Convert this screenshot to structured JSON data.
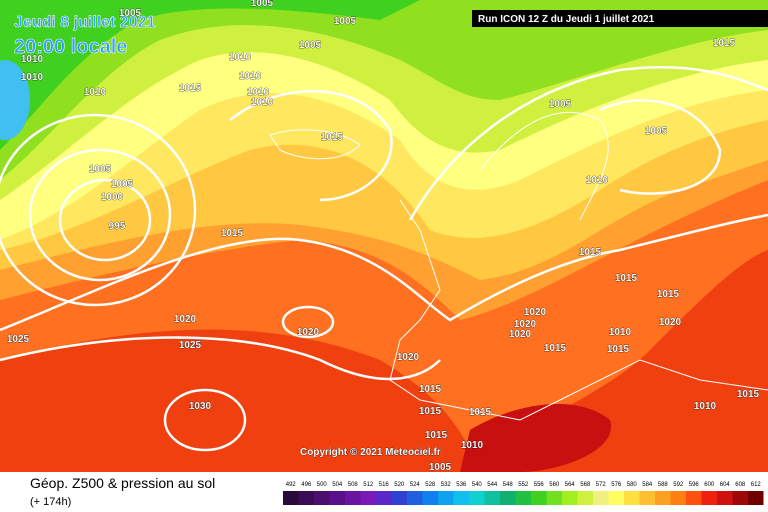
{
  "header": {
    "date": "Jeudi 8 juillet 2021",
    "time": "20:00 locale",
    "run": "Run ICON 12 Z du Jeudi 1 juillet 2021"
  },
  "copyright": "Copyright © 2021 Meteociel.fr",
  "footer": {
    "title": "Géop. Z500 & pression au sol",
    "lead": "(+ 174h)"
  },
  "isobar_labels": [
    "1005",
    "1005",
    "1005",
    "1005",
    "1010",
    "1010",
    "1010",
    "1010",
    "1015",
    "1010",
    "1010",
    "1010",
    "1015",
    "1005",
    "1005",
    "1015",
    "1010",
    "1005",
    "1005",
    "1000",
    "995",
    "1015",
    "1015",
    "1015",
    "1015",
    "1020",
    "1020",
    "1025",
    "1025",
    "1020",
    "1020",
    "1020",
    "1015",
    "1020",
    "1015",
    "1030",
    "1015",
    "1015",
    "1010",
    "1015",
    "1020",
    "1010",
    "1015",
    "1015",
    "1010",
    "1005"
  ],
  "colorbar": {
    "labels": [
      492,
      496,
      500,
      504,
      508,
      512,
      516,
      520,
      524,
      528,
      532,
      536,
      540,
      544,
      548,
      552,
      556,
      560,
      564,
      568,
      572,
      576,
      580,
      584,
      588,
      592,
      596,
      600,
      604,
      608,
      612
    ],
    "colors": [
      "#2a0a3a",
      "#3a0c55",
      "#4b0f70",
      "#5a1088",
      "#6a14a0",
      "#7a1ab8",
      "#5a28c8",
      "#3040d0",
      "#2060e0",
      "#1080f0",
      "#10a0f0",
      "#10c0f0",
      "#10d0d0",
      "#10c0a0",
      "#10b070",
      "#20c040",
      "#40d020",
      "#70e020",
      "#a0f020",
      "#d0f040",
      "#f0f080",
      "#ffff60",
      "#ffe040",
      "#ffc030",
      "#ffa020",
      "#ff8010",
      "#ff5010",
      "#f02010",
      "#d01010",
      "#a00808",
      "#700000"
    ]
  }
}
